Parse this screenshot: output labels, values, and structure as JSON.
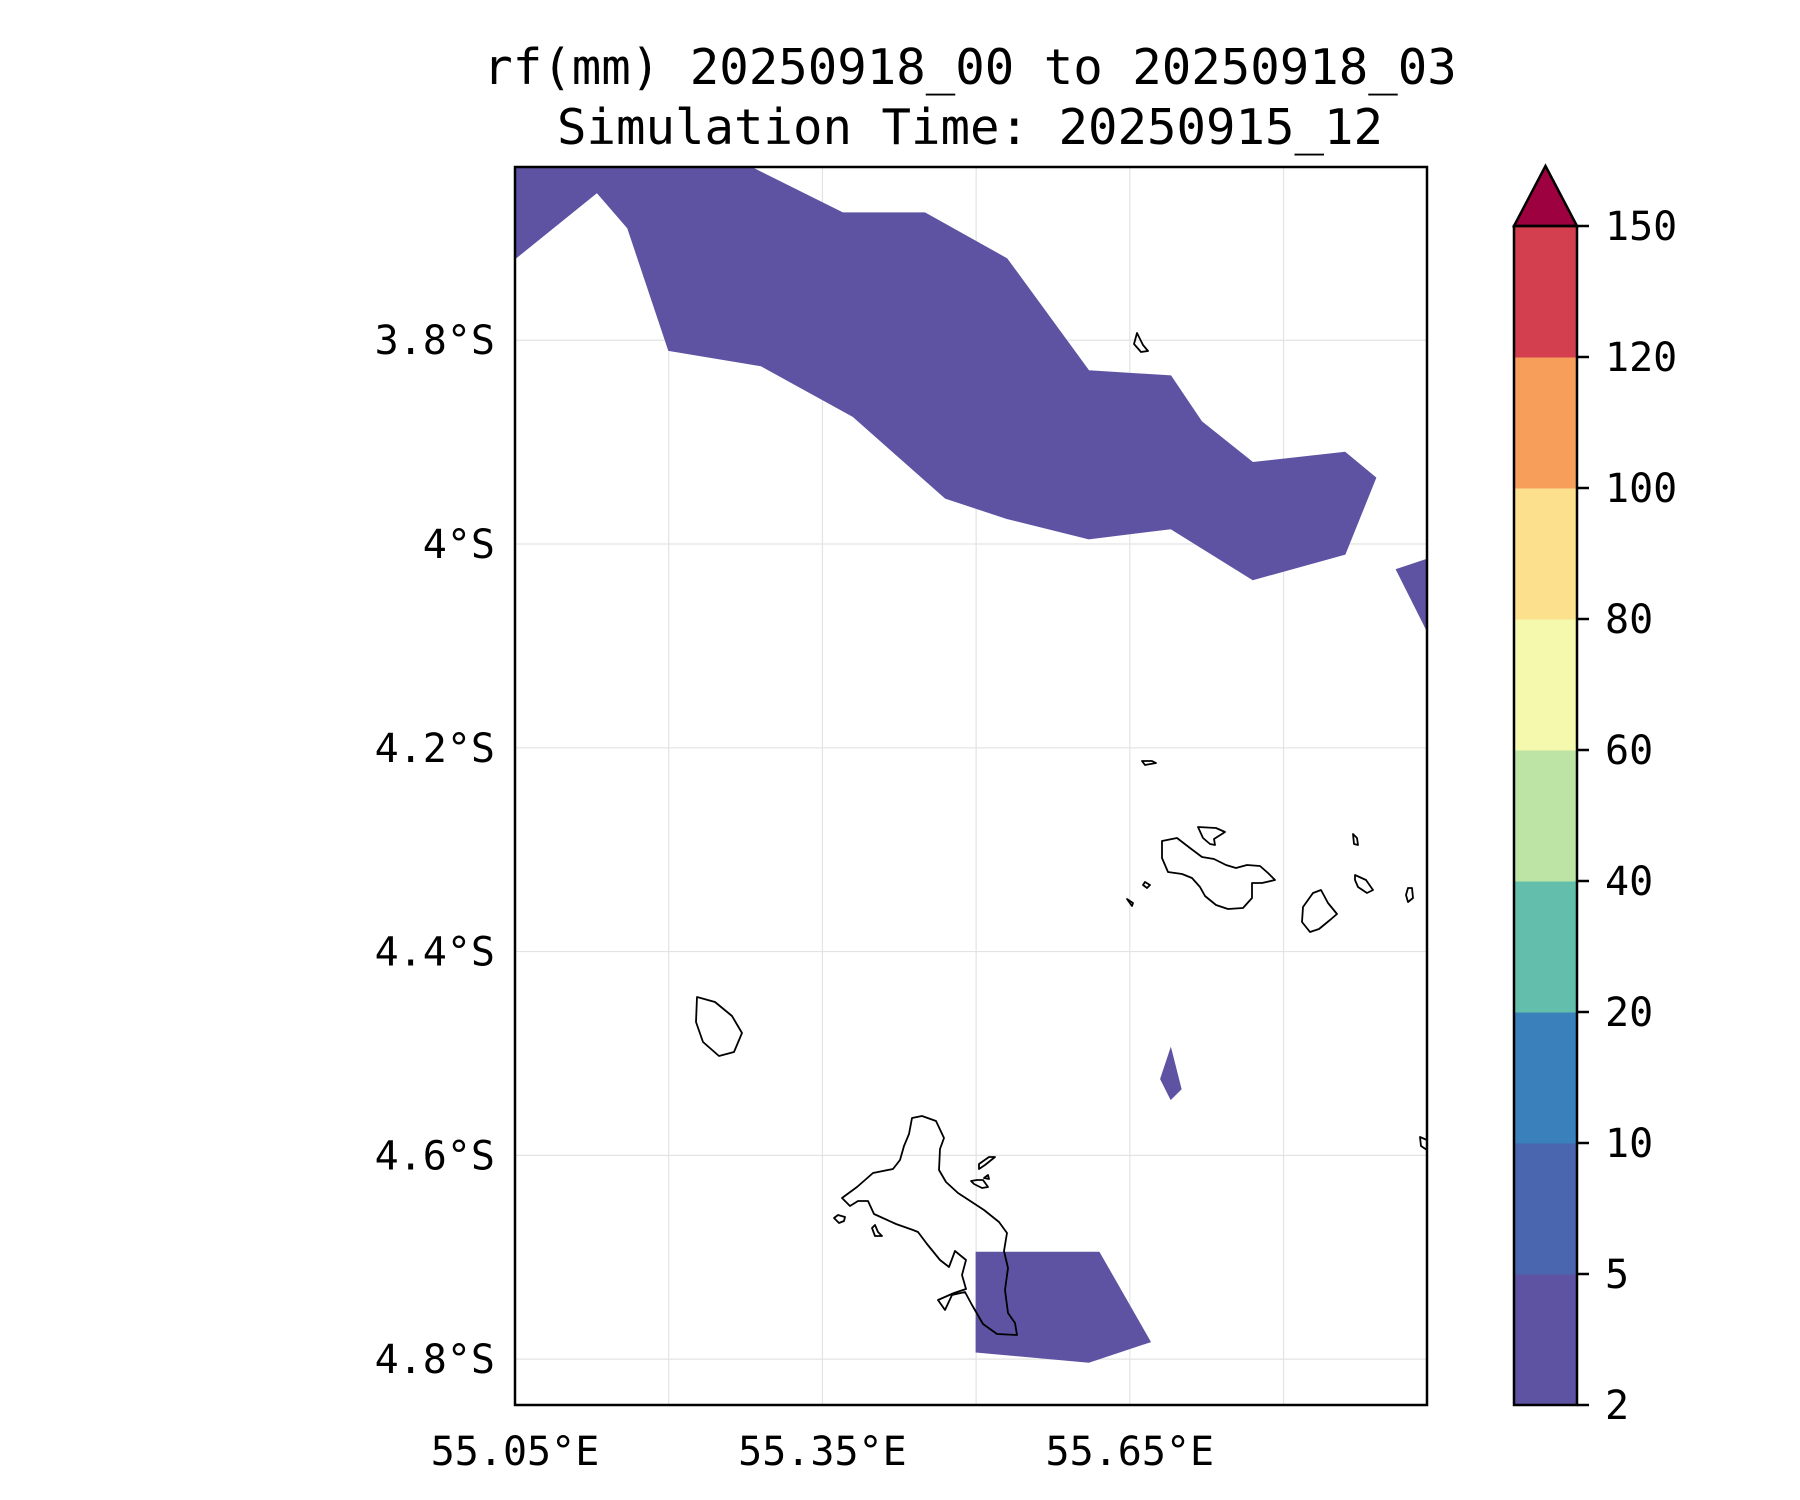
{
  "title": {
    "line1": "rf(mm) 20250918_00 to 20250918_03",
    "line2": "Simulation Time: 20250915_12"
  },
  "map": {
    "lat_ticks": [
      "3.8°S",
      "4°S",
      "4.2°S",
      "4.4°S",
      "4.6°S",
      "4.8°S"
    ],
    "lon_ticks": [
      "55.05°E",
      "55.35°E",
      "55.65°E"
    ],
    "grid": true,
    "extent": {
      "lon_min": 55.05,
      "lon_max": 55.94,
      "lat_min": -4.845,
      "lat_max": -3.63
    },
    "rain_areas": [
      {
        "category": "2-5 mm",
        "color": "#5e53a3",
        "polygon": [
          [
            55.05,
            -3.63
          ],
          [
            55.28,
            -3.63
          ],
          [
            55.28,
            -3.63
          ],
          [
            55.37,
            -3.675
          ],
          [
            55.45,
            -3.675
          ],
          [
            55.53,
            -3.72
          ],
          [
            55.61,
            -3.83
          ],
          [
            55.69,
            -3.835
          ],
          [
            55.72,
            -3.88
          ],
          [
            55.77,
            -3.92
          ],
          [
            55.86,
            -3.91
          ],
          [
            55.89,
            -3.935
          ],
          [
            55.86,
            -4.01
          ],
          [
            55.77,
            -4.035
          ],
          [
            55.69,
            -3.985
          ],
          [
            55.61,
            -3.995
          ],
          [
            55.53,
            -3.975
          ],
          [
            55.47,
            -3.955
          ],
          [
            55.38,
            -3.875
          ],
          [
            55.29,
            -3.825
          ],
          [
            55.2,
            -3.81
          ],
          [
            55.16,
            -3.69
          ],
          [
            55.13,
            -3.655
          ],
          [
            55.05,
            -3.72
          ]
        ]
      },
      {
        "category": "2-5 mm",
        "color": "#5e53a3",
        "polygon": [
          [
            55.91,
            -4.025
          ],
          [
            55.94,
            -4.015
          ],
          [
            55.94,
            -4.085
          ]
        ]
      },
      {
        "category": "2-5 mm",
        "color": "#5e53a3",
        "polygon": [
          [
            55.69,
            -4.495
          ],
          [
            55.7,
            -4.535
          ],
          [
            55.69,
            -4.545
          ],
          [
            55.68,
            -4.525
          ]
        ]
      },
      {
        "category": "2-5 mm",
        "color": "#5e53a3",
        "polygon": [
          [
            55.5,
            -4.695
          ],
          [
            55.62,
            -4.695
          ],
          [
            55.67,
            -4.783
          ],
          [
            55.61,
            -4.803
          ],
          [
            55.5,
            -4.793
          ]
        ]
      }
    ]
  },
  "colorbar": {
    "ticks": [
      "2",
      "5",
      "10",
      "20",
      "40",
      "60",
      "80",
      "100",
      "120",
      "150"
    ],
    "colors": [
      "#5e53a3",
      "#4a66ae",
      "#3a80bb",
      "#63bfab",
      "#bde4a4",
      "#f4f9ad",
      "#fce08d",
      "#f89e5b",
      "#d43f50"
    ],
    "extend_color": "#9e013f",
    "extend": "max"
  }
}
